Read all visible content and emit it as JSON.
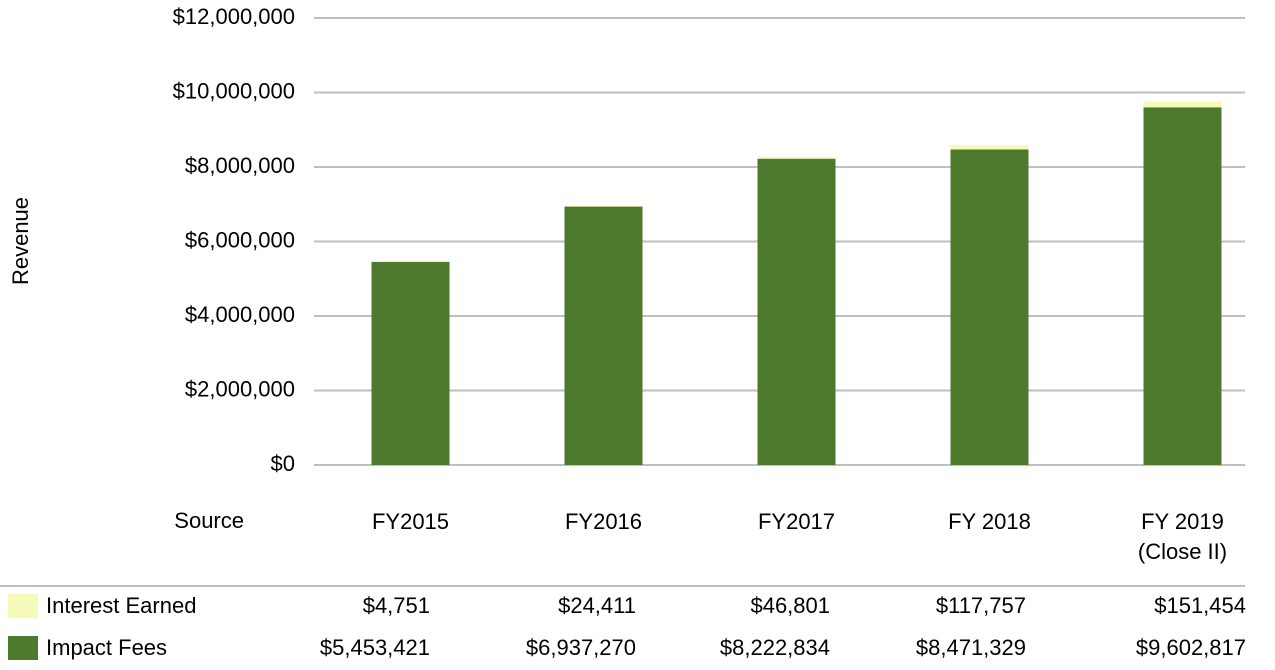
{
  "chart_data": {
    "type": "stacked_bar",
    "y_label": "Revenue",
    "table_header": "Source",
    "categories": [
      "FY2015",
      "FY2016",
      "FY2017",
      "FY 2018",
      "FY 2019 (Close II)"
    ],
    "series": [
      {
        "name": "Interest Earned",
        "color": "#f5f9b9",
        "values": [
          4751,
          24411,
          46801,
          117757,
          151454
        ],
        "value_labels": [
          "$4,751",
          "$24,411",
          "$46,801",
          "$117,757",
          "$151,454"
        ]
      },
      {
        "name": "Impact Fees",
        "color": "#4e7a2e",
        "values": [
          5453421,
          6937270,
          8222834,
          8471329,
          9602817
        ],
        "value_labels": [
          "$5,453,421",
          "$6,937,270",
          "$8,222,834",
          "$8,471,329",
          "$9,602,817"
        ]
      }
    ],
    "ylim": [
      0,
      12000000
    ],
    "yticks": [
      {
        "value": 0,
        "label": "$0"
      },
      {
        "value": 2000000,
        "label": "$2,000,000"
      },
      {
        "value": 4000000,
        "label": "$4,000,000"
      },
      {
        "value": 6000000,
        "label": "$6,000,000"
      },
      {
        "value": 8000000,
        "label": "$8,000,000"
      },
      {
        "value": 10000000,
        "label": "$10,000,000"
      },
      {
        "value": 12000000,
        "label": "$12,000,000"
      }
    ],
    "grid": true
  }
}
